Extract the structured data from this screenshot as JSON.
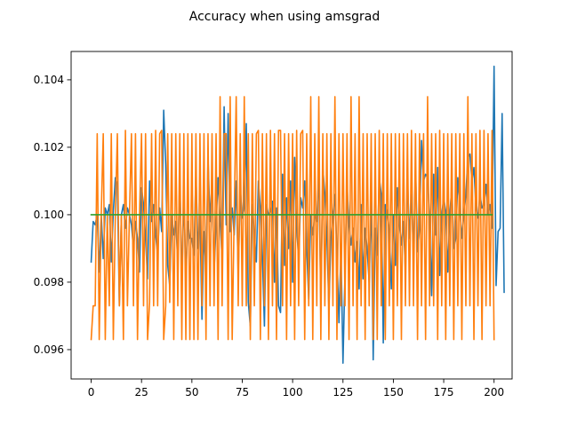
{
  "chart_data": {
    "type": "line",
    "title": "Accuracy when using amsgrad",
    "xlabel": "",
    "ylabel": "",
    "xlim": [
      -9.95,
      208.95
    ],
    "ylim": [
      0.09513,
      0.10484
    ],
    "grid": false,
    "xticks": [
      0,
      25,
      50,
      75,
      100,
      125,
      150,
      175,
      200
    ],
    "yticks": [
      0.096,
      0.098,
      0.1,
      0.102,
      0.104
    ],
    "ytick_labels": [
      "0.096",
      "0.098",
      "0.100",
      "0.102",
      "0.104"
    ],
    "colors": {
      "blue": "#1f77b4",
      "orange": "#ff7f0e",
      "green": "#2ca02c"
    },
    "series": [
      {
        "color": "#1f77b4",
        "x_start": 0,
        "x_step": 1,
        "values": [
          0.0986,
          0.0998,
          0.0997,
          0.1,
          0.0983,
          0.1,
          0.0987,
          0.1002,
          0.1,
          0.1003,
          0.0986,
          0.1001,
          0.1011,
          0.1009,
          0.0973,
          0.1,
          0.1003,
          0.0996,
          0.1002,
          0.1,
          0.0997,
          0.099,
          0.0998,
          0.0993,
          0.0983,
          0.1008,
          0.1003,
          0.0993,
          0.0981,
          0.101,
          0.0998,
          0.1003,
          0.0994,
          0.0988,
          0.1002,
          0.0995,
          0.1031,
          0.1015,
          0.0985,
          0.0979,
          0.1,
          0.0994,
          0.0998,
          0.0986,
          0.1011,
          0.0979,
          0.1006,
          0.0982,
          0.0998,
          0.0993,
          0.0993,
          0.0988,
          0.1012,
          0.099,
          0.1,
          0.0969,
          0.0995,
          0.0983,
          0.1017,
          0.0998,
          0.101,
          0.0983,
          0.0997,
          0.1011,
          0.0998,
          0.0987,
          0.1032,
          0.0997,
          0.103,
          0.0995,
          0.1002,
          0.0994,
          0.101,
          0.0982,
          0.1008,
          0.0999,
          0.1002,
          0.1027,
          0.0974,
          0.0967,
          0.1003,
          0.0994,
          0.0986,
          0.101,
          0.1002,
          0.0988,
          0.0967,
          0.1003,
          0.1,
          0.1001,
          0.1004,
          0.098,
          0.1002,
          0.0973,
          0.0971,
          0.1012,
          0.0985,
          0.1005,
          0.099,
          0.101,
          0.098,
          0.1017,
          0.0996,
          0.0987,
          0.1005,
          0.1002,
          0.101,
          0.099,
          0.0975,
          0.1,
          0.0994,
          0.1,
          0.0998,
          0.1013,
          0.0974,
          0.1014,
          0.1006,
          0.0994,
          0.0972,
          0.0993,
          0.1,
          0.1006,
          0.0989,
          0.0968,
          0.099,
          0.0956,
          0.0983,
          0.1009,
          0.0997,
          0.0991,
          0.0996,
          0.0986,
          0.0992,
          0.0978,
          0.1003,
          0.0981,
          0.0996,
          0.099,
          0.098,
          0.1006,
          0.0957,
          0.0996,
          0.0988,
          0.1011,
          0.1006,
          0.0962,
          0.1003,
          0.1001,
          0.0995,
          0.0978,
          0.1,
          0.0985,
          0.1008,
          0.0997,
          0.0991,
          0.0998,
          0.0983,
          0.1011,
          0.0993,
          0.1006,
          0.0988,
          0.1014,
          0.0989,
          0.0996,
          0.1022,
          0.101,
          0.1012,
          0.1011,
          0.0998,
          0.0976,
          0.1012,
          0.0994,
          0.1014,
          0.0982,
          0.1,
          0.1005,
          0.1001,
          0.0983,
          0.1,
          0.1008,
          0.099,
          0.0993,
          0.1011,
          0.1002,
          0.0993,
          0.1,
          0.1006,
          0.1017,
          0.1018,
          0.101,
          0.1014,
          0.1002,
          0.0999,
          0.1006,
          0.1002,
          0.1003,
          0.1009,
          0.1,
          0.1003,
          0.0996,
          0.1044,
          0.0979,
          0.0995,
          0.0996,
          0.103,
          0.0977
        ]
      },
      {
        "color": "#ff7f0e",
        "x_start": 0,
        "x_step": 1,
        "values": [
          0.0963,
          0.0973,
          0.0973,
          0.1024,
          0.0963,
          0.1,
          0.1024,
          0.0963,
          0.1,
          0.0973,
          0.1024,
          0.0963,
          0.1,
          0.1024,
          0.0973,
          0.1,
          0.0963,
          0.1025,
          0.0973,
          0.1,
          0.1024,
          0.0973,
          0.1024,
          0.0963,
          0.1,
          0.1024,
          0.0973,
          0.1024,
          0.0963,
          0.0974,
          0.1024,
          0.0973,
          0.1025,
          0.0973,
          0.1024,
          0.1025,
          0.0963,
          0.0973,
          0.1024,
          0.0974,
          0.1024,
          0.0963,
          0.1024,
          0.0973,
          0.1024,
          0.0963,
          0.1024,
          0.0963,
          0.1024,
          0.0963,
          0.1024,
          0.0963,
          0.1024,
          0.0963,
          0.1024,
          0.0973,
          0.1024,
          0.0963,
          0.1024,
          0.0973,
          0.1024,
          0.0973,
          0.1024,
          0.0963,
          0.1035,
          0.0973,
          0.1024,
          0.1024,
          0.0963,
          0.1035,
          0.0963,
          0.1,
          0.1035,
          0.0973,
          0.1024,
          0.0973,
          0.1035,
          0.0973,
          0.1024,
          0.0963,
          0.1024,
          0.0973,
          0.1024,
          0.1025,
          0.0963,
          0.1024,
          0.0973,
          0.1024,
          0.0963,
          0.1025,
          0.0973,
          0.1024,
          0.0963,
          0.1025,
          0.1025,
          0.0973,
          0.1024,
          0.0963,
          0.1024,
          0.0973,
          0.1024,
          0.0963,
          0.1025,
          0.0973,
          0.1024,
          0.1025,
          0.0963,
          0.1024,
          0.0973,
          0.1035,
          0.0963,
          0.1024,
          0.0973,
          0.1035,
          0.0963,
          0.1024,
          0.0973,
          0.1024,
          0.0963,
          0.1024,
          0.0973,
          0.1035,
          0.0963,
          0.1024,
          0.0973,
          0.1024,
          0.0973,
          0.1024,
          0.0963,
          0.1035,
          0.0973,
          0.1024,
          0.0963,
          0.1035,
          0.0973,
          0.1024,
          0.0963,
          0.1024,
          0.0973,
          0.1024,
          0.0963,
          0.1024,
          0.0963,
          0.1025,
          0.0973,
          0.1024,
          0.0963,
          0.1024,
          0.0973,
          0.1024,
          0.0963,
          0.1024,
          0.0973,
          0.1024,
          0.0963,
          0.1024,
          0.0973,
          0.1024,
          0.0973,
          0.1025,
          0.0973,
          0.1024,
          0.0963,
          0.1024,
          0.0973,
          0.1024,
          0.0963,
          0.1035,
          0.0973,
          0.1024,
          0.0973,
          0.1024,
          0.0963,
          0.1025,
          0.0973,
          0.1024,
          0.0963,
          0.1024,
          0.0973,
          0.1024,
          0.0963,
          0.1024,
          0.0973,
          0.1024,
          0.0963,
          0.1024,
          0.0973,
          0.1035,
          0.0973,
          0.1024,
          0.0963,
          0.1024,
          0.0973,
          0.1025,
          0.0963,
          0.1025,
          0.0973,
          0.1024,
          0.0973,
          0.1025,
          0.0963
        ]
      },
      {
        "color": "#2ca02c",
        "x": [
          0,
          199
        ],
        "values": [
          0.1,
          0.1
        ]
      }
    ]
  }
}
